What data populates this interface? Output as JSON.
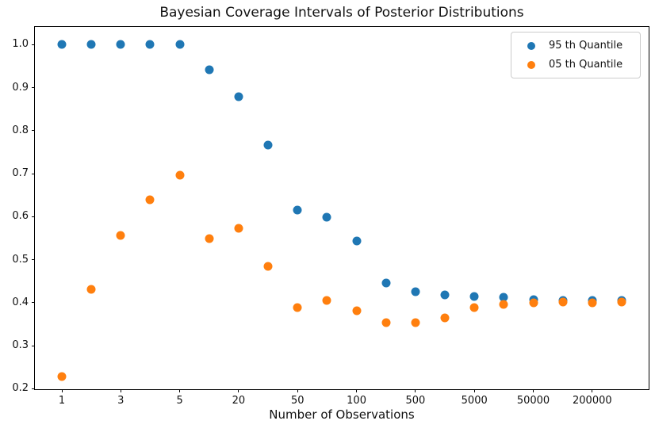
{
  "chart_data": {
    "type": "scatter",
    "title": "Bayesian Coverage Intervals of Posterior Distributions",
    "xlabel": "Number of Observations",
    "ylabel": "",
    "categories": [
      "1",
      "2",
      "3",
      "4",
      "5",
      "10",
      "20",
      "30",
      "50",
      "70",
      "100",
      "200",
      "500",
      "1000",
      "5000",
      "10000",
      "50000",
      "100000",
      "200000",
      "500000"
    ],
    "x_tick_indices": [
      0,
      2,
      4,
      6,
      8,
      10,
      12,
      14,
      16,
      18
    ],
    "x_tick_labels": [
      "1",
      "3",
      "5",
      "20",
      "50",
      "100",
      "500",
      "5000",
      "50000",
      "200000"
    ],
    "y_ticks": [
      0.2,
      0.3,
      0.4,
      0.5,
      0.6,
      0.7,
      0.8,
      0.9,
      1.0
    ],
    "ylim": [
      0.199,
      1.041
    ],
    "grid": false,
    "legend_position": "upper right",
    "background_color": "#ffffff",
    "series": [
      {
        "name": "95 th Quantile",
        "color": "#1f77b4",
        "values": [
          1.0,
          1.0,
          1.0,
          1.0,
          1.0,
          0.941,
          0.879,
          0.766,
          0.615,
          0.599,
          0.544,
          0.445,
          0.425,
          0.418,
          0.414,
          0.413,
          0.408,
          0.406,
          0.405,
          0.406
        ]
      },
      {
        "name": "05 th Quantile",
        "color": "#ff7f0e",
        "values": [
          0.228,
          0.431,
          0.557,
          0.639,
          0.696,
          0.549,
          0.573,
          0.485,
          0.388,
          0.405,
          0.381,
          0.353,
          0.353,
          0.365,
          0.389,
          0.396,
          0.4,
          0.401,
          0.4,
          0.402
        ]
      }
    ]
  }
}
